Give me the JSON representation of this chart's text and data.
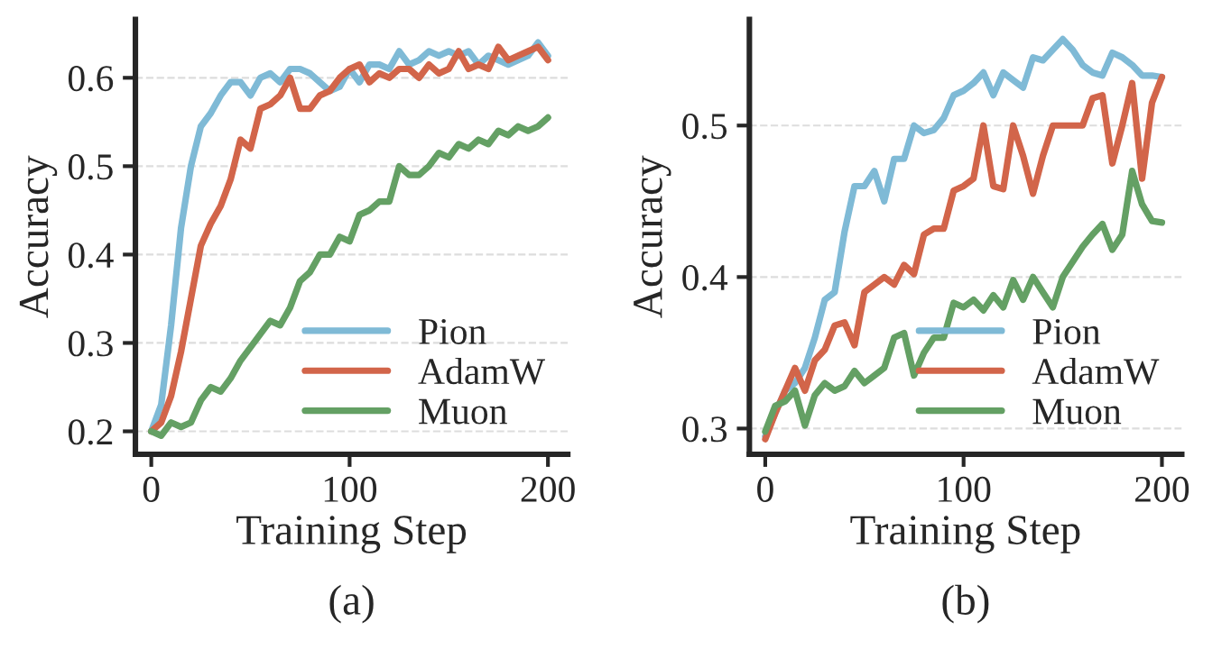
{
  "chart_data": [
    {
      "type": "line",
      "xlabel": "Training Step",
      "ylabel": "Accuracy",
      "annotations": [
        "(a)"
      ],
      "x": [
        0,
        5,
        10,
        15,
        20,
        25,
        30,
        35,
        40,
        45,
        50,
        55,
        60,
        65,
        70,
        75,
        80,
        85,
        90,
        95,
        100,
        105,
        110,
        115,
        120,
        125,
        130,
        135,
        140,
        145,
        150,
        155,
        160,
        165,
        170,
        175,
        180,
        185,
        190,
        195,
        200
      ],
      "xlim": [
        -8,
        210
      ],
      "ylim": [
        0.174,
        0.666
      ],
      "xticks": [
        0,
        100,
        200
      ],
      "yticks": [
        0.2,
        0.3,
        0.4,
        0.5,
        0.6
      ],
      "grid": "y",
      "legend": "bottom right",
      "line_style": "solid",
      "marker": "none",
      "series": [
        {
          "name": "Pion",
          "color": "#7fbad6",
          "values": [
            0.2,
            0.23,
            0.32,
            0.43,
            0.5,
            0.545,
            0.56,
            0.58,
            0.595,
            0.595,
            0.58,
            0.6,
            0.605,
            0.595,
            0.61,
            0.61,
            0.605,
            0.595,
            0.585,
            0.59,
            0.61,
            0.595,
            0.615,
            0.615,
            0.61,
            0.63,
            0.615,
            0.62,
            0.63,
            0.625,
            0.63,
            0.625,
            0.63,
            0.615,
            0.625,
            0.62,
            0.615,
            0.62,
            0.625,
            0.64,
            0.625
          ]
        },
        {
          "name": "AdamW",
          "color": "#d2654a",
          "values": [
            0.2,
            0.21,
            0.24,
            0.29,
            0.35,
            0.41,
            0.435,
            0.455,
            0.485,
            0.53,
            0.52,
            0.565,
            0.57,
            0.58,
            0.6,
            0.565,
            0.565,
            0.58,
            0.585,
            0.6,
            0.61,
            0.615,
            0.595,
            0.605,
            0.6,
            0.61,
            0.61,
            0.6,
            0.615,
            0.605,
            0.61,
            0.63,
            0.61,
            0.615,
            0.61,
            0.635,
            0.62,
            0.625,
            0.63,
            0.635,
            0.62
          ]
        },
        {
          "name": "Muon",
          "color": "#64a064",
          "values": [
            0.2,
            0.195,
            0.21,
            0.205,
            0.21,
            0.235,
            0.25,
            0.245,
            0.26,
            0.28,
            0.295,
            0.31,
            0.325,
            0.32,
            0.34,
            0.37,
            0.38,
            0.4,
            0.4,
            0.42,
            0.415,
            0.445,
            0.45,
            0.46,
            0.46,
            0.5,
            0.49,
            0.49,
            0.5,
            0.515,
            0.51,
            0.525,
            0.52,
            0.53,
            0.525,
            0.54,
            0.535,
            0.545,
            0.54,
            0.545,
            0.555
          ]
        }
      ]
    },
    {
      "type": "line",
      "xlabel": "Training Step",
      "ylabel": "Accuracy",
      "annotations": [
        "(b)"
      ],
      "x": [
        0,
        5,
        10,
        15,
        20,
        25,
        30,
        35,
        40,
        45,
        50,
        55,
        60,
        65,
        70,
        75,
        80,
        85,
        90,
        95,
        100,
        105,
        110,
        115,
        120,
        125,
        130,
        135,
        140,
        145,
        150,
        155,
        160,
        165,
        170,
        175,
        180,
        185,
        190,
        195,
        200
      ],
      "xlim": [
        -8,
        210
      ],
      "ylim": [
        0.283,
        0.57
      ],
      "xticks": [
        0,
        100,
        200
      ],
      "yticks": [
        0.3,
        0.4,
        0.5
      ],
      "grid": "y",
      "legend": "bottom right",
      "line_style": "solid",
      "marker": "none",
      "series": [
        {
          "name": "Pion",
          "color": "#7fbad6",
          "values": [
            0.295,
            0.31,
            0.325,
            0.33,
            0.34,
            0.36,
            0.385,
            0.39,
            0.43,
            0.46,
            0.46,
            0.47,
            0.45,
            0.478,
            0.478,
            0.5,
            0.495,
            0.497,
            0.505,
            0.52,
            0.523,
            0.528,
            0.535,
            0.52,
            0.535,
            0.53,
            0.525,
            0.545,
            0.543,
            0.55,
            0.557,
            0.55,
            0.54,
            0.535,
            0.533,
            0.548,
            0.545,
            0.54,
            0.533,
            0.533,
            0.532
          ]
        },
        {
          "name": "AdamW",
          "color": "#d2654a",
          "values": [
            0.293,
            0.31,
            0.325,
            0.34,
            0.325,
            0.345,
            0.352,
            0.368,
            0.37,
            0.355,
            0.39,
            0.395,
            0.4,
            0.395,
            0.408,
            0.402,
            0.428,
            0.432,
            0.432,
            0.457,
            0.46,
            0.465,
            0.5,
            0.46,
            0.458,
            0.5,
            0.48,
            0.455,
            0.48,
            0.5,
            0.5,
            0.5,
            0.5,
            0.518,
            0.52,
            0.475,
            0.5,
            0.528,
            0.465,
            0.515,
            0.532
          ]
        },
        {
          "name": "Muon",
          "color": "#64a064",
          "values": [
            0.298,
            0.315,
            0.318,
            0.325,
            0.302,
            0.322,
            0.33,
            0.325,
            0.328,
            0.338,
            0.33,
            0.335,
            0.34,
            0.36,
            0.363,
            0.335,
            0.35,
            0.36,
            0.36,
            0.383,
            0.38,
            0.385,
            0.378,
            0.388,
            0.38,
            0.398,
            0.385,
            0.4,
            0.39,
            0.38,
            0.4,
            0.41,
            0.42,
            0.428,
            0.435,
            0.418,
            0.428,
            0.47,
            0.448,
            0.437,
            0.436
          ]
        }
      ]
    }
  ]
}
